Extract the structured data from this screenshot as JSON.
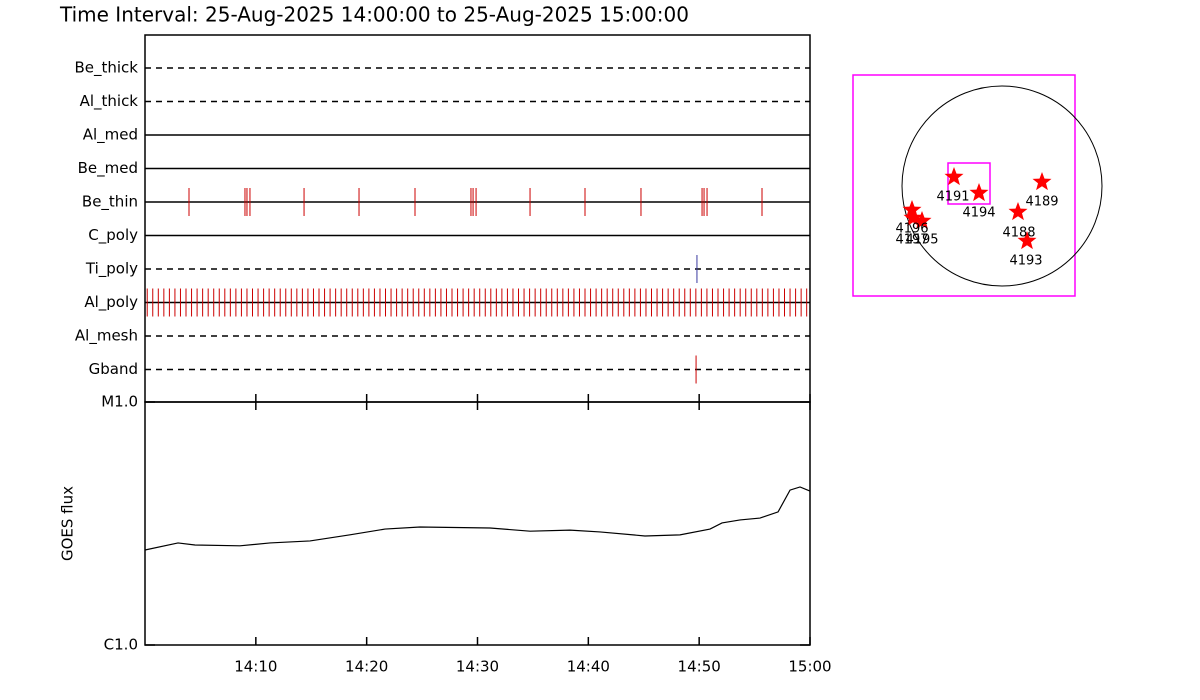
{
  "chart_data": [
    {
      "type": "event",
      "title": "Time Interval: 25-Aug-2025 14:00:00 to 25-Aug-2025 15:00:00",
      "xlim": [
        0,
        60
      ],
      "rows": [
        {
          "label": "Be_thick",
          "line": "dashed",
          "color": "#cc0000",
          "events": []
        },
        {
          "label": "Al_thick",
          "line": "dashed",
          "color": "#cc0000",
          "events": []
        },
        {
          "label": "Al_med",
          "line": "solid",
          "color": "#cc0000",
          "events": []
        },
        {
          "label": "Be_med",
          "line": "solid",
          "color": "#cc0000",
          "events": []
        },
        {
          "label": "Be_thin",
          "line": "solid",
          "color": "#cc0000",
          "events": [
            3.97,
            9.02,
            9.2,
            9.47,
            14.35,
            19.31,
            24.36,
            29.41,
            29.6,
            29.87,
            34.74,
            39.7,
            44.75,
            50.26,
            50.44,
            50.71,
            55.67
          ]
        },
        {
          "label": "C_poly",
          "line": "solid",
          "color": "#cc0000",
          "events": []
        },
        {
          "label": "Ti_poly",
          "line": "dashed",
          "color": "#3a3aa0",
          "events": [
            49.8
          ]
        },
        {
          "label": "Al_poly",
          "line": "solid",
          "color": "#cc0000",
          "events": [
            0.2,
            0.7,
            1.2,
            1.7,
            2.2,
            2.7,
            3.2,
            3.7,
            4.2,
            4.7,
            5.2,
            5.7,
            6.2,
            6.7,
            7.2,
            7.7,
            8.2,
            8.7,
            9.2,
            9.7,
            10.2,
            10.7,
            11.2,
            11.7,
            12.2,
            12.7,
            13.2,
            13.7,
            14.2,
            14.7,
            15.2,
            15.7,
            16.2,
            16.7,
            17.2,
            17.7,
            18.2,
            18.7,
            19.2,
            19.7,
            20.2,
            20.7,
            21.2,
            21.7,
            22.2,
            22.7,
            23.2,
            23.7,
            24.2,
            24.7,
            25.2,
            25.7,
            26.2,
            26.7,
            27.2,
            27.7,
            28.2,
            28.7,
            29.2,
            29.7,
            30.2,
            30.7,
            31.2,
            31.7,
            32.2,
            32.7,
            33.2,
            33.7,
            34.2,
            34.7,
            35.2,
            35.7,
            36.2,
            36.7,
            37.2,
            37.7,
            38.2,
            38.7,
            39.2,
            39.7,
            40.2,
            40.7,
            41.2,
            41.7,
            42.2,
            42.7,
            43.2,
            43.7,
            44.2,
            44.7,
            45.2,
            45.7,
            46.2,
            46.7,
            47.2,
            47.7,
            48.2,
            48.7,
            49.2,
            49.7,
            50.2,
            50.7,
            51.2,
            51.7,
            52.2,
            52.7,
            53.2,
            53.7,
            54.2,
            54.7,
            55.2,
            55.7,
            56.2,
            56.7,
            57.2,
            57.7,
            58.2,
            58.7,
            59.2,
            59.7
          ]
        },
        {
          "label": "Al_mesh",
          "line": "dashed",
          "color": "#cc0000",
          "events": []
        },
        {
          "label": "Gband",
          "line": "dashed",
          "color": "#cc0000",
          "events": [
            49.72
          ]
        }
      ]
    },
    {
      "type": "line",
      "ylabel": "GOES flux",
      "log": true,
      "color": "#000000",
      "xlim": [
        0,
        60
      ],
      "xticks": [
        {
          "value": 10,
          "label": "14:10"
        },
        {
          "value": 20,
          "label": "14:20"
        },
        {
          "value": 30,
          "label": "14:30"
        },
        {
          "value": 40,
          "label": "14:40"
        },
        {
          "value": 50,
          "label": "14:50"
        },
        {
          "value": 60,
          "label": "15:00"
        }
      ],
      "ylim": [
        1e-06,
        1e-05
      ],
      "yticks": [
        {
          "value": 1e-06,
          "label": "C1.0"
        },
        {
          "value": 1e-05,
          "label": "M1.0"
        }
      ],
      "x": [
        0,
        2.98,
        4.51,
        8.57,
        11.28,
        14.89,
        18.5,
        21.65,
        24.81,
        31.13,
        34.74,
        38.35,
        41.05,
        45.11,
        48.27,
        50.98,
        52.06,
        53.69,
        55.49,
        57.12,
        58.2,
        59.1,
        60
      ],
      "values": [
        2.46e-06,
        2.63e-06,
        2.58e-06,
        2.56e-06,
        2.63e-06,
        2.68e-06,
        2.84e-06,
        3e-06,
        3.06e-06,
        3.03e-06,
        2.94e-06,
        2.97e-06,
        2.92e-06,
        2.81e-06,
        2.84e-06,
        3e-06,
        3.18e-06,
        3.27e-06,
        3.33e-06,
        3.53e-06,
        4.34e-06,
        4.47e-06,
        4.3e-06
      ]
    }
  ],
  "map": {
    "regions": [
      {
        "label": "4191"
      },
      {
        "label": "4194"
      },
      {
        "label": "4189"
      },
      {
        "label": "4188"
      },
      {
        "label": "4193"
      },
      {
        "label": "4196"
      },
      {
        "label": "4197"
      },
      {
        "label": "4195"
      }
    ]
  }
}
